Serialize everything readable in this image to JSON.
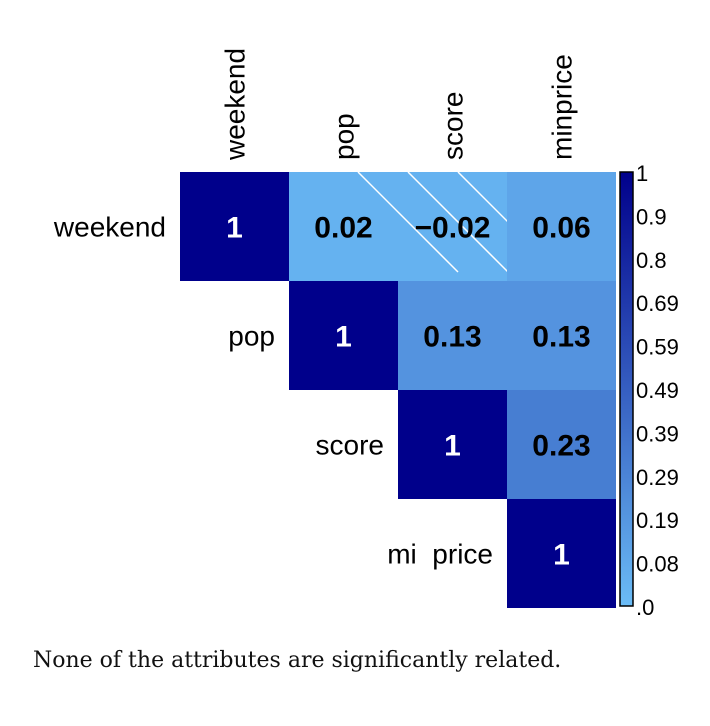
{
  "chart_data": {
    "type": "heatmap",
    "layout": "upper-triangle",
    "rows": [
      "weekend",
      "pop",
      "score",
      "mi  price"
    ],
    "columns": [
      "weekend",
      "pop",
      "score",
      "minprice"
    ],
    "cells": [
      {
        "row": 0,
        "col": 0,
        "value": 1,
        "label": "1"
      },
      {
        "row": 0,
        "col": 1,
        "value": 0.02,
        "label": "0.02"
      },
      {
        "row": 0,
        "col": 2,
        "value": -0.02,
        "label": "−0.02",
        "hatched": true
      },
      {
        "row": 0,
        "col": 3,
        "value": 0.06,
        "label": "0.06"
      },
      {
        "row": 1,
        "col": 1,
        "value": 1,
        "label": "1"
      },
      {
        "row": 1,
        "col": 2,
        "value": 0.13,
        "label": "0.13"
      },
      {
        "row": 1,
        "col": 3,
        "value": 0.13,
        "label": "0.13"
      },
      {
        "row": 2,
        "col": 2,
        "value": 1,
        "label": "1"
      },
      {
        "row": 2,
        "col": 3,
        "value": 0.23,
        "label": "0.23"
      },
      {
        "row": 3,
        "col": 3,
        "value": 1,
        "label": "1"
      }
    ],
    "colorbar": {
      "ticks": [
        "1",
        "0.9",
        "0.8",
        "0.69",
        "0.59",
        "0.49",
        "0.39",
        "0.29",
        "0.19",
        "0.08",
        ".0"
      ],
      "range": [
        0,
        1
      ],
      "color_low": "#6bbcf6",
      "color_high": "#00008b"
    }
  },
  "caption": "None of the attributes are significantly related."
}
